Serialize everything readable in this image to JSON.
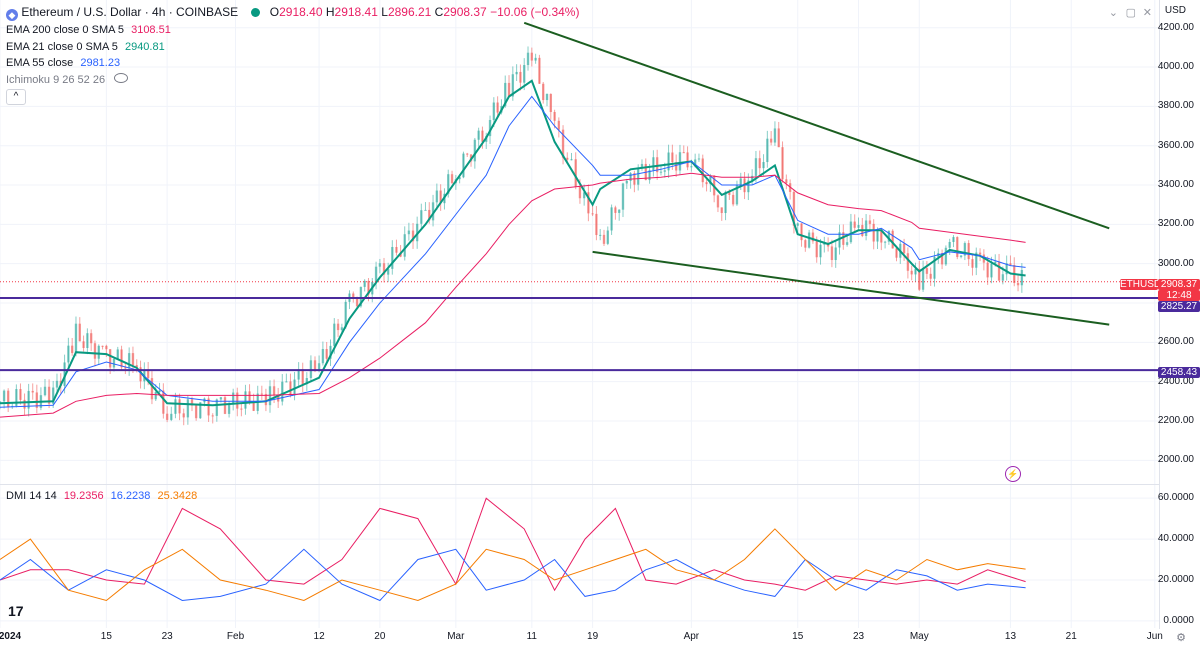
{
  "header": {
    "icon": "ethereum-icon",
    "symbol_title": "Ethereum / U.S. Dollar · 4h · COINBASE",
    "status_color": "#089981",
    "ohlc": {
      "o_label": "O",
      "o": "2918.40",
      "h_label": "H",
      "h": "2918.41",
      "l_label": "L",
      "l": "2896.21",
      "c_label": "C",
      "c": "2908.37",
      "change": "−10.06 (−0.34%)"
    },
    "currency_button": "USD"
  },
  "indicators": [
    {
      "label": "EMA 200 close 0 SMA 5",
      "value": "3108.51",
      "color": "#e91e63"
    },
    {
      "label": "EMA 21 close 0 SMA 5",
      "value": "2940.81",
      "color": "#089981"
    },
    {
      "label": "EMA 55 close",
      "value": "2981.23",
      "color": "#2962ff"
    },
    {
      "label": "Ichimoku 9 26 52 26",
      "value": "",
      "color": "#787b86"
    }
  ],
  "collapse_button": "^",
  "dmi": {
    "label": "DMI 14 14",
    "values": [
      {
        "value": "19.2356",
        "color": "#e91e63"
      },
      {
        "value": "16.2238",
        "color": "#2962ff"
      },
      {
        "value": "25.3428",
        "color": "#f57c00"
      }
    ]
  },
  "price_axis": {
    "ticks": [
      "4200.00",
      "4000.00",
      "3800.00",
      "3600.00",
      "3400.00",
      "3200.00",
      "3000.00",
      "2800.00",
      "2600.00",
      "2400.00",
      "2200.00",
      "2000.00"
    ],
    "current_label": "ETHUSD",
    "current_price": "2908.37",
    "countdown": "12:48",
    "current_color": "#f23645",
    "level_1": "2825.27",
    "level_2": "2458.43",
    "level_color": "#4a2a9c"
  },
  "dmi_axis": {
    "ticks": [
      "60.0000",
      "40.0000",
      "20.0000",
      "0.0000"
    ]
  },
  "time_axis": {
    "ticks": [
      "2024",
      "15",
      "23",
      "Feb",
      "12",
      "20",
      "Mar",
      "11",
      "19",
      "Apr",
      "15",
      "23",
      "May",
      "13",
      "21",
      "Jun"
    ]
  },
  "logo_text": "17",
  "chart_data": [
    {
      "type": "line",
      "title": "Ethereum / U.S. Dollar · 4h · COINBASE",
      "x": [
        "2024-01-01",
        "2024-01-08",
        "2024-01-11",
        "2024-01-15",
        "2024-01-19",
        "2024-01-23",
        "2024-01-29",
        "2024-02-05",
        "2024-02-12",
        "2024-02-16",
        "2024-02-20",
        "2024-02-26",
        "2024-03-01",
        "2024-03-05",
        "2024-03-08",
        "2024-03-11",
        "2024-03-14",
        "2024-03-19",
        "2024-03-20",
        "2024-03-24",
        "2024-03-28",
        "2024-04-01",
        "2024-04-05",
        "2024-04-09",
        "2024-04-12",
        "2024-04-15",
        "2024-04-19",
        "2024-04-23",
        "2024-04-26",
        "2024-04-30",
        "2024-05-01",
        "2024-05-05",
        "2024-05-09",
        "2024-05-13",
        "2024-05-15"
      ],
      "series": [
        {
          "name": "ETHUSD",
          "values": [
            2300,
            2330,
            2640,
            2530,
            2480,
            2250,
            2280,
            2310,
            2480,
            2800,
            2950,
            3250,
            3450,
            3700,
            3900,
            4050,
            3700,
            3200,
            3100,
            3450,
            3500,
            3550,
            3300,
            3450,
            3650,
            3150,
            3050,
            3200,
            3150,
            3000,
            2900,
            3100,
            3000,
            2940,
            2908
          ],
          "color": "#26a69a"
        },
        {
          "name": "EMA 21",
          "values": [
            2290,
            2300,
            2550,
            2540,
            2470,
            2290,
            2280,
            2300,
            2420,
            2720,
            2930,
            3200,
            3420,
            3640,
            3850,
            3930,
            3620,
            3300,
            3380,
            3480,
            3500,
            3520,
            3350,
            3420,
            3500,
            3150,
            3100,
            3170,
            3170,
            3000,
            2960,
            3070,
            3040,
            2950,
            2940
          ],
          "color": "#089981"
        },
        {
          "name": "EMA 55",
          "values": [
            2270,
            2280,
            2450,
            2500,
            2460,
            2330,
            2300,
            2300,
            2360,
            2600,
            2800,
            3050,
            3250,
            3450,
            3700,
            3850,
            3700,
            3500,
            3450,
            3450,
            3480,
            3520,
            3400,
            3400,
            3450,
            3220,
            3150,
            3150,
            3180,
            3080,
            3020,
            3060,
            3040,
            2990,
            2981
          ],
          "color": "#2962ff"
        },
        {
          "name": "EMA 200",
          "values": [
            2220,
            2240,
            2300,
            2330,
            2340,
            2330,
            2330,
            2330,
            2340,
            2420,
            2520,
            2700,
            2880,
            3050,
            3200,
            3320,
            3380,
            3400,
            3410,
            3430,
            3440,
            3460,
            3440,
            3440,
            3450,
            3360,
            3300,
            3280,
            3270,
            3210,
            3180,
            3160,
            3140,
            3120,
            3108
          ],
          "color": "#e91e63"
        }
      ],
      "trendlines": [
        {
          "name": "upper",
          "from": [
            "2024-03-10",
            4225
          ],
          "to": [
            "2024-05-26",
            3180
          ],
          "color": "#1b5e20"
        },
        {
          "name": "lower",
          "from": [
            "2024-03-19",
            3060
          ],
          "to": [
            "2024-05-26",
            2690
          ],
          "color": "#1b5e20"
        }
      ],
      "horizontal_levels": [
        {
          "value": 2825.27,
          "color": "#4a2a9c"
        },
        {
          "value": 2458.43,
          "color": "#4a2a9c"
        }
      ],
      "ylim": [
        1900,
        4290
      ],
      "xlabel": "",
      "ylabel": "",
      "grid": true
    },
    {
      "type": "line",
      "title": "DMI 14 14",
      "x": [
        "2024-01-01",
        "2024-01-05",
        "2024-01-10",
        "2024-01-15",
        "2024-01-20",
        "2024-01-25",
        "2024-01-30",
        "2024-02-05",
        "2024-02-10",
        "2024-02-15",
        "2024-02-20",
        "2024-02-25",
        "2024-03-01",
        "2024-03-05",
        "2024-03-10",
        "2024-03-14",
        "2024-03-18",
        "2024-03-22",
        "2024-03-26",
        "2024-03-30",
        "2024-04-04",
        "2024-04-08",
        "2024-04-12",
        "2024-04-16",
        "2024-04-20",
        "2024-04-24",
        "2024-04-28",
        "2024-05-02",
        "2024-05-06",
        "2024-05-10",
        "2024-05-15"
      ],
      "series": [
        {
          "name": "DI+",
          "values": [
            20,
            25,
            25,
            20,
            18,
            55,
            45,
            20,
            18,
            30,
            55,
            50,
            18,
            60,
            45,
            15,
            40,
            55,
            20,
            18,
            25,
            20,
            18,
            15,
            22,
            20,
            18,
            20,
            18,
            25,
            19.2356
          ],
          "color": "#e91e63"
        },
        {
          "name": "DI−",
          "values": [
            20,
            30,
            15,
            25,
            20,
            10,
            12,
            18,
            35,
            18,
            10,
            30,
            35,
            15,
            20,
            30,
            12,
            15,
            25,
            30,
            20,
            15,
            12,
            30,
            20,
            15,
            25,
            22,
            15,
            18,
            16.2238
          ],
          "color": "#2962ff"
        },
        {
          "name": "ADX",
          "values": [
            30,
            40,
            15,
            10,
            25,
            35,
            20,
            15,
            10,
            20,
            15,
            10,
            18,
            35,
            30,
            20,
            25,
            30,
            35,
            25,
            20,
            30,
            45,
            30,
            15,
            25,
            20,
            30,
            25,
            28,
            25.3428
          ],
          "color": "#f57c00"
        }
      ],
      "ylim": [
        -2,
        64
      ],
      "grid": true
    }
  ]
}
